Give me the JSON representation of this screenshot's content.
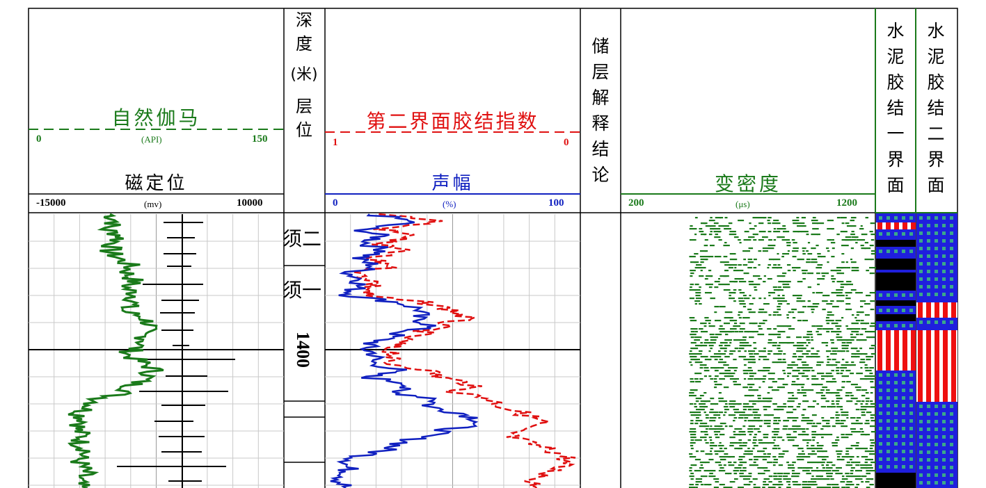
{
  "tracks": {
    "gr": {
      "title": "自然伽马",
      "min": "0",
      "max": "150",
      "unit": "(API)",
      "color": "#1a7a1a"
    },
    "ccl": {
      "title": "磁定位",
      "min": "-15000",
      "max": "10000",
      "unit": "(mv)",
      "color": "#000000"
    },
    "depth": {
      "title_chars": [
        "深",
        "度",
        "(米)",
        "层",
        "位"
      ],
      "depth_label": "1400",
      "formations": [
        "须二",
        "须一"
      ]
    },
    "bond2": {
      "title": "第二界面胶结指数",
      "min": "1",
      "max": "0",
      "color": "#e01010"
    },
    "amp": {
      "title": "声幅",
      "min": "0",
      "max": "100",
      "unit": "(%)",
      "color": "#1020c0"
    },
    "interp": {
      "title_chars": [
        "储",
        "层",
        "解",
        "释",
        "结",
        "论"
      ]
    },
    "vdl": {
      "title": "变密度",
      "min": "200",
      "max": "1200",
      "unit": "(μs)",
      "color": "#1a7a1a"
    },
    "cem1": {
      "title_chars": [
        "水",
        "泥",
        "胶",
        "结",
        "一",
        "界",
        "面"
      ]
    },
    "cem2": {
      "title_chars": [
        "水",
        "泥",
        "胶",
        "结",
        "二",
        "界",
        "面"
      ]
    }
  },
  "chart_data": {
    "type": "line",
    "depth_axis": {
      "label": "深度(米)",
      "marked_depth": 1400
    },
    "series": [
      {
        "name": "自然伽马",
        "unit": "API",
        "range": [
          0,
          150
        ],
        "values": [
          48,
          52,
          45,
          55,
          50,
          47,
          53,
          60,
          58,
          62,
          57,
          64,
          61,
          55,
          68,
          72,
          65,
          70,
          63,
          58,
          66,
          74,
          70,
          62,
          58,
          42,
          36,
          30,
          34,
          28,
          32,
          30,
          35,
          29,
          31,
          33,
          28,
          30
        ]
      },
      {
        "name": "声幅",
        "unit": "%",
        "range": [
          0,
          100
        ],
        "values": [
          18,
          35,
          14,
          22,
          16,
          25,
          12,
          20,
          10,
          15,
          12,
          10,
          30,
          38,
          35,
          42,
          30,
          22,
          15,
          20,
          18,
          28,
          16,
          35,
          25,
          45,
          40,
          55,
          62,
          50,
          38,
          30,
          22,
          12,
          8,
          10,
          6,
          8
        ]
      },
      {
        "name": "第二界面胶结指数",
        "unit": "",
        "range": [
          1,
          0
        ],
        "values": [
          0.75,
          0.55,
          0.78,
          0.65,
          0.8,
          0.7,
          0.85,
          0.72,
          0.88,
          0.8,
          0.82,
          0.85,
          0.6,
          0.5,
          0.45,
          0.55,
          0.62,
          0.7,
          0.75,
          0.72,
          0.78,
          0.6,
          0.55,
          0.42,
          0.48,
          0.35,
          0.3,
          0.22,
          0.15,
          0.25,
          0.28,
          0.2,
          0.1,
          0.05,
          0.08,
          0.12,
          0.18,
          0.15
        ]
      }
    ]
  }
}
